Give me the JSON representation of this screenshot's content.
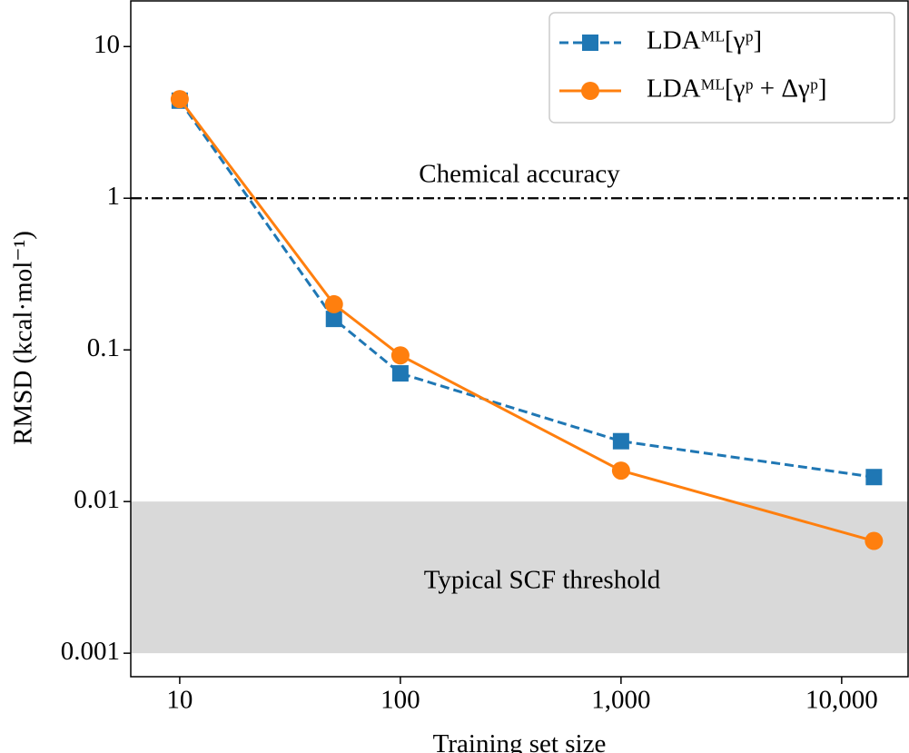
{
  "chart_data": {
    "type": "line",
    "x_label": "Training set size",
    "y_label": "RMSD (kcal·mol⁻¹)",
    "x_scale": "log",
    "y_scale": "log",
    "xlim": [
      6,
      20000
    ],
    "ylim": [
      0.0007,
      20
    ],
    "xticks": [
      10,
      100,
      {
        "value": 1000,
        "label": "1,000"
      },
      {
        "value": 10000,
        "label": "10,000"
      }
    ],
    "yticks": [
      10,
      1,
      0.1,
      0.01,
      0.001
    ],
    "legend": "upper right",
    "hline": {
      "y": 1,
      "label": "Chemical accuracy",
      "color": "#000000"
    },
    "band": {
      "y": [
        0.001,
        0.01
      ],
      "label": "Typical SCF threshold",
      "color": "#d9d9d9"
    },
    "series": [
      {
        "name": "LDAᴹᴸ[γᵖ]",
        "color": "#1f77b4",
        "marker": "square",
        "dash": true,
        "x": [
          10,
          50,
          100,
          1000,
          14000
        ],
        "values": [
          4.4,
          0.16,
          0.07,
          0.025,
          0.0145
        ]
      },
      {
        "name": "LDAᴹᴸ[γᵖ + Δγᵖ]",
        "color": "#ff7f0e",
        "marker": "circle",
        "dash": false,
        "x": [
          10,
          50,
          100,
          1000,
          14000
        ],
        "values": [
          4.5,
          0.2,
          0.092,
          0.016,
          0.0055
        ]
      }
    ]
  }
}
